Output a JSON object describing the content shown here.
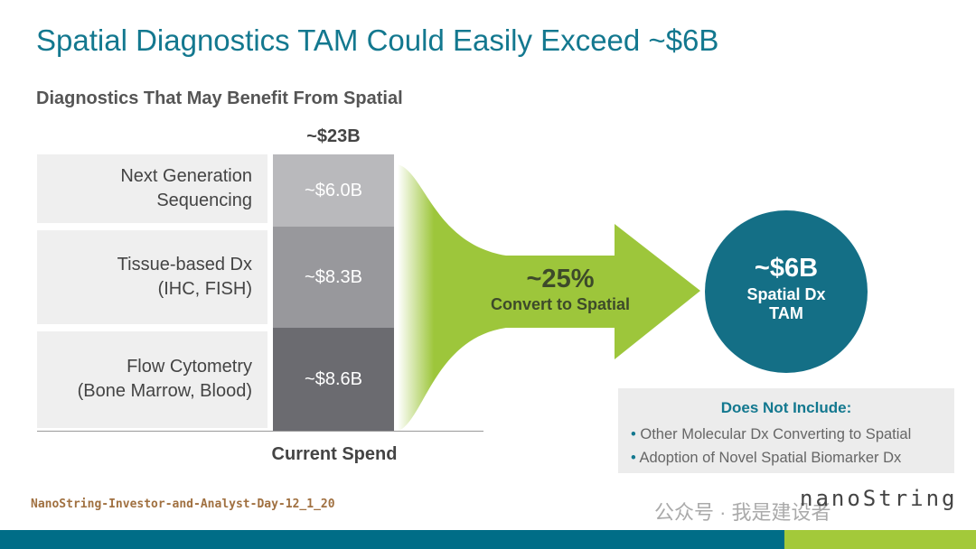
{
  "title": "Spatial Diagnostics TAM Could Easily Exceed ~$6B",
  "subtitle": "Diagnostics That May Benefit From Spatial",
  "chart_data": {
    "type": "bar",
    "stacked": true,
    "title": "~$23B",
    "xlabel": "Current Spend",
    "categories": [
      "Next Generation Sequencing",
      "Tissue-based Dx (IHC, FISH)",
      "Flow Cytometry (Bone Marrow, Blood)"
    ],
    "category_lines": [
      [
        "Next Generation",
        "Sequencing"
      ],
      [
        "Tissue-based Dx",
        "(IHC, FISH)"
      ],
      [
        "Flow Cytometry",
        "(Bone Marrow, Blood)"
      ]
    ],
    "values": [
      6.0,
      8.3,
      8.6
    ],
    "value_labels": [
      "~$6.0B",
      "~$8.3B",
      "~$8.6B"
    ],
    "colors": [
      "#b9b9bc",
      "#98989c",
      "#6b6b70"
    ],
    "unit": "$B"
  },
  "arrow": {
    "percent": "~25%",
    "text": "Convert to Spatial",
    "color": "#9dc63b"
  },
  "tam": {
    "value": "~$6B",
    "line1": "Spatial Dx",
    "line2": "TAM"
  },
  "note": {
    "heading": "Does Not Include:",
    "items": [
      "Other Molecular Dx Converting to Spatial",
      "Adoption of Novel Spatial Biomarker Dx"
    ]
  },
  "footer": "NanoString-Investor-and-Analyst-Day-12_1_20",
  "watermark": "公众号 · 我是建设者",
  "logo": "nanoString"
}
